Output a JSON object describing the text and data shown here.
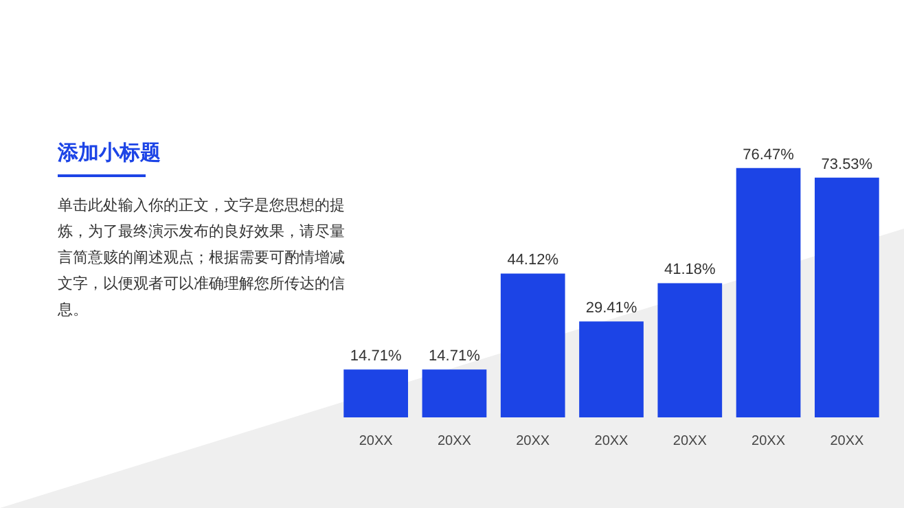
{
  "chart_data": {
    "type": "bar",
    "title": "添加小标题",
    "annotations": [
      "单击此处输入你的正文，文字是您思想的提炼，为了最终演示发布的良好效果，请尽量言简意赅的阐述观点；根据需要可酌情增减文字，以便观者可以准确理解您所传达的信息。"
    ],
    "categories": [
      "20XX",
      "20XX",
      "20XX",
      "20XX",
      "20XX",
      "20XX",
      "20XX"
    ],
    "values": [
      14.71,
      14.71,
      44.12,
      29.41,
      41.18,
      76.47,
      73.53
    ],
    "value_labels": [
      "14.71%",
      "14.71%",
      "44.12%",
      "29.41%",
      "41.18%",
      "76.47%",
      "73.53%"
    ],
    "color": "#1c44e6"
  }
}
